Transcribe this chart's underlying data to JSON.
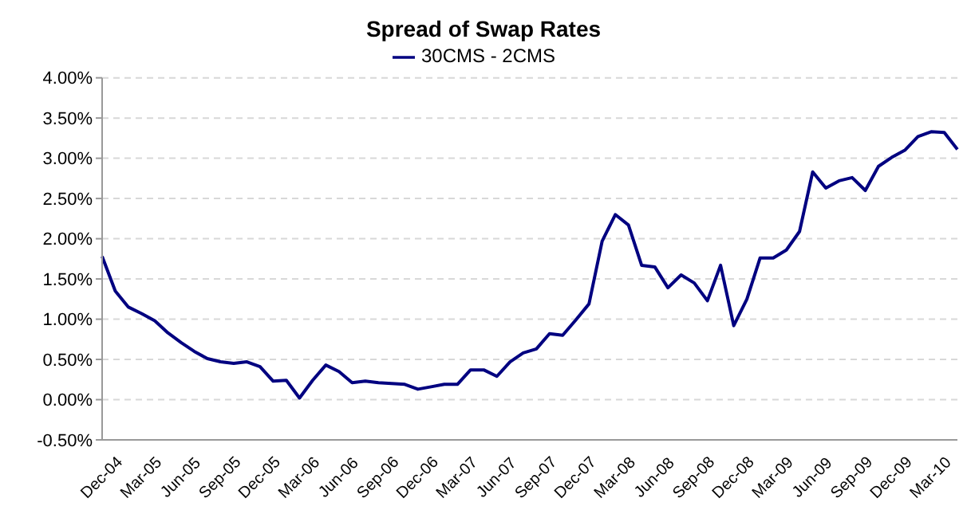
{
  "chart_data": {
    "type": "line",
    "title": "Spread of Swap Rates",
    "categories": [
      "Dec-04",
      null,
      null,
      "Mar-05",
      null,
      null,
      "Jun-05",
      null,
      null,
      "Sep-05",
      null,
      null,
      "Dec-05",
      null,
      null,
      "Mar-06",
      null,
      null,
      "Jun-06",
      null,
      null,
      "Sep-06",
      null,
      null,
      "Dec-06",
      null,
      null,
      "Mar-07",
      null,
      null,
      "Jun-07",
      null,
      null,
      "Sep-07",
      null,
      null,
      "Dec-07",
      null,
      null,
      "Mar-08",
      null,
      null,
      "Jun-08",
      null,
      null,
      "Sep-08",
      null,
      null,
      "Dec-08",
      null,
      null,
      "Mar-09",
      null,
      null,
      "Jun-09",
      null,
      null,
      "Sep-09",
      null,
      null,
      "Dec-09",
      null,
      null,
      "Mar-10",
      null,
      null
    ],
    "series": [
      {
        "name": "30CMS - 2CMS",
        "color": "#000080",
        "values": [
          1.78,
          1.35,
          1.15,
          1.07,
          0.98,
          0.83,
          0.71,
          0.6,
          0.51,
          0.47,
          0.45,
          0.47,
          0.41,
          0.23,
          0.24,
          0.02,
          0.24,
          0.43,
          0.35,
          0.21,
          0.23,
          0.21,
          0.2,
          0.19,
          0.13,
          0.16,
          0.19,
          0.19,
          0.37,
          0.37,
          0.29,
          0.47,
          0.58,
          0.63,
          0.82,
          0.8,
          0.99,
          1.19,
          1.97,
          2.3,
          2.17,
          1.67,
          1.65,
          1.39,
          1.55,
          1.45,
          1.23,
          1.67,
          0.92,
          1.25,
          1.76,
          1.76,
          1.86,
          2.09,
          2.83,
          2.63,
          2.72,
          2.76,
          2.6,
          2.9,
          3.01,
          3.1,
          3.27,
          3.33,
          3.32,
          3.11
        ]
      }
    ],
    "ylim": [
      -0.5,
      4
    ],
    "yticks": [
      {
        "value": -0.5,
        "label": "-0.50%"
      },
      {
        "value": 0,
        "label": "0.00%"
      },
      {
        "value": 0.5,
        "label": "0.50%"
      },
      {
        "value": 1,
        "label": "1.00%"
      },
      {
        "value": 1.5,
        "label": "1.50%"
      },
      {
        "value": 2,
        "label": "2.00%"
      },
      {
        "value": 2.5,
        "label": "2.50%"
      },
      {
        "value": 3,
        "label": "3.00%"
      },
      {
        "value": 3.5,
        "label": "3.50%"
      },
      {
        "value": 4,
        "label": "4.00%"
      }
    ],
    "grid": "y",
    "legend": "top",
    "marker": "none",
    "line_style": "solid"
  }
}
